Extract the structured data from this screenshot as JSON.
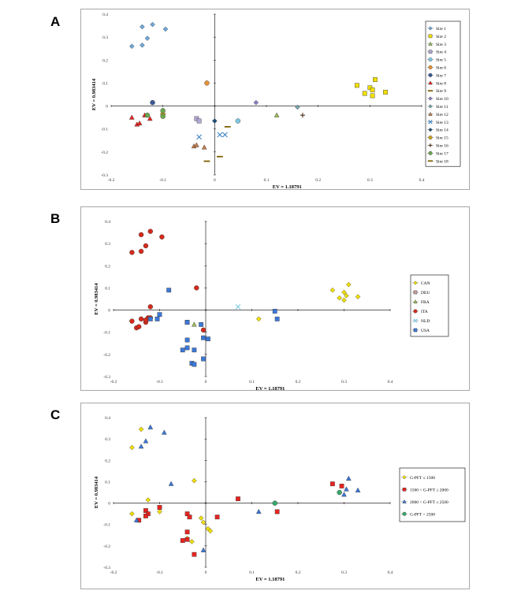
{
  "chart_data": [
    {
      "panel": "A",
      "type": "scatter",
      "xlabel": "EV = 1.18791",
      "ylabel": "EV = 0.983414",
      "xlim": [
        -0.2,
        0.4
      ],
      "ylim": [
        -0.3,
        0.4
      ],
      "xticks": [
        "-0.2",
        "-0.1",
        "0",
        "0.1",
        "0.2",
        "0.3",
        "0.4"
      ],
      "yticks": [
        "0.4",
        "0.3",
        "0.2",
        "0.1",
        "0",
        "-0.1",
        "-0.2",
        "-0.3"
      ],
      "legend_position": "right",
      "series": [
        {
          "name": "Sire 1",
          "marker": "diamond",
          "color": "#6fa8dc",
          "points": [
            [
              -0.16,
              0.26
            ],
            [
              -0.14,
              0.265
            ],
            [
              -0.13,
              0.295
            ],
            [
              -0.14,
              0.345
            ],
            [
              -0.12,
              0.355
            ],
            [
              -0.095,
              0.335
            ]
          ]
        },
        {
          "name": "Sire 2",
          "marker": "square",
          "color": "#f1e000",
          "points": [
            [
              0.275,
              0.09
            ],
            [
              0.29,
              0.055
            ],
            [
              0.3,
              0.08
            ],
            [
              0.31,
              0.115
            ],
            [
              0.305,
              0.07
            ],
            [
              0.305,
              0.045
            ],
            [
              0.33,
              0.06
            ]
          ]
        },
        {
          "name": "Sire 3",
          "marker": "triangle",
          "color": "#9bbb59",
          "points": [
            [
              0.12,
              -0.04
            ]
          ]
        },
        {
          "name": "Sire 4",
          "marker": "square",
          "color": "#b4a7d6",
          "points": [
            [
              -0.035,
              -0.055
            ],
            [
              -0.03,
              -0.065
            ]
          ]
        },
        {
          "name": "Sire 5",
          "marker": "circle",
          "color": "#7ec8e3",
          "points": [
            [
              0.045,
              -0.065
            ]
          ]
        },
        {
          "name": "Sire 6",
          "marker": "circle",
          "color": "#e69138",
          "points": [
            [
              -0.015,
              0.1
            ]
          ]
        },
        {
          "name": "Sire 7",
          "marker": "circle",
          "color": "#3d5a99",
          "points": [
            [
              -0.12,
              0.015
            ]
          ]
        },
        {
          "name": "Sire 8",
          "marker": "triangle",
          "color": "#e8231f",
          "points": [
            [
              -0.16,
              -0.05
            ],
            [
              -0.15,
              -0.08
            ],
            [
              -0.145,
              -0.075
            ],
            [
              -0.135,
              -0.04
            ],
            [
              -0.125,
              -0.055
            ]
          ]
        },
        {
          "name": "Sire 9",
          "marker": "dash",
          "color": "#7f6000",
          "points": [
            [
              0.01,
              -0.22
            ],
            [
              0.025,
              -0.09
            ]
          ]
        },
        {
          "name": "Sire 10",
          "marker": "diamond",
          "color": "#8e7cc3",
          "points": [
            [
              0.08,
              0.015
            ]
          ]
        },
        {
          "name": "Sire 11",
          "marker": "diamond",
          "color": "#76a5af",
          "points": [
            [
              0.16,
              -0.005
            ]
          ]
        },
        {
          "name": "Sire 12",
          "marker": "triangle",
          "color": "#c27c4e",
          "points": [
            [
              -0.04,
              -0.175
            ],
            [
              -0.035,
              -0.17
            ],
            [
              -0.02,
              -0.18
            ]
          ]
        },
        {
          "name": "Sire 13",
          "marker": "x",
          "color": "#3d85c6",
          "points": [
            [
              -0.03,
              -0.135
            ],
            [
              0.01,
              -0.125
            ],
            [
              0.02,
              -0.125
            ]
          ]
        },
        {
          "name": "Sire 14",
          "marker": "diamond",
          "color": "#1f4e79",
          "points": [
            [
              0.0,
              -0.065
            ]
          ]
        },
        {
          "name": "Sire 15",
          "marker": "circle",
          "color": "#c9a227",
          "points": [
            [
              -0.1,
              -0.035
            ]
          ]
        },
        {
          "name": "Sire 16",
          "marker": "plus",
          "color": "#5b3a29",
          "points": [
            [
              0.17,
              -0.04
            ]
          ]
        },
        {
          "name": "Sire 17",
          "marker": "circle",
          "color": "#6aa84f",
          "points": [
            [
              -0.13,
              -0.04
            ],
            [
              -0.1,
              -0.02
            ],
            [
              -0.1,
              -0.045
            ]
          ]
        },
        {
          "name": "Sire 18",
          "marker": "dash",
          "color": "#7f6000",
          "points": [
            [
              -0.015,
              -0.24
            ]
          ]
        }
      ]
    },
    {
      "panel": "B",
      "type": "scatter",
      "xlabel": "EV = 1.18791",
      "ylabel": "EV = 0.983414",
      "xlim": [
        -0.2,
        0.4
      ],
      "ylim": [
        -0.3,
        0.4
      ],
      "xticks": [
        "-0.2",
        "-0.1",
        "0",
        "0.1",
        "0.2",
        "0.3",
        "0.4"
      ],
      "yticks": [
        "0.4",
        "0.3",
        "0.2",
        "0.1",
        "0",
        "-0.1",
        "-0.2",
        "-0.3"
      ],
      "legend_position": "right",
      "series": [
        {
          "name": "CAN",
          "marker": "diamond",
          "color": "#f1e000",
          "points": [
            [
              0.275,
              0.09
            ],
            [
              0.29,
              0.055
            ],
            [
              0.3,
              0.08
            ],
            [
              0.31,
              0.115
            ],
            [
              0.305,
              0.065
            ],
            [
              0.3,
              0.045
            ],
            [
              0.33,
              0.06
            ],
            [
              0.115,
              -0.04
            ]
          ]
        },
        {
          "name": "DEU",
          "marker": "square",
          "color": "#c59a9a",
          "points": [
            [
              -0.04,
              -0.055
            ]
          ]
        },
        {
          "name": "FRA",
          "marker": "triangle",
          "color": "#9bbb59",
          "points": [
            [
              -0.025,
              -0.065
            ]
          ]
        },
        {
          "name": "ITA",
          "marker": "circle",
          "color": "#d42a1c",
          "points": [
            [
              -0.16,
              0.26
            ],
            [
              -0.14,
              0.265
            ],
            [
              -0.13,
              0.29
            ],
            [
              -0.14,
              0.34
            ],
            [
              -0.12,
              0.355
            ],
            [
              -0.095,
              0.33
            ],
            [
              -0.02,
              0.1
            ],
            [
              -0.12,
              0.015
            ],
            [
              -0.16,
              -0.05
            ],
            [
              -0.15,
              -0.08
            ],
            [
              -0.145,
              -0.075
            ],
            [
              -0.14,
              -0.04
            ],
            [
              -0.13,
              -0.055
            ],
            [
              -0.125,
              -0.035
            ],
            [
              -0.13,
              -0.045
            ],
            [
              -0.12,
              -0.035
            ],
            [
              -0.005,
              -0.09
            ]
          ]
        },
        {
          "name": "NLD",
          "marker": "x",
          "color": "#7ec8e3",
          "points": [
            [
              0.07,
              0.015
            ]
          ]
        },
        {
          "name": "USA",
          "marker": "square",
          "color": "#3c78d8",
          "points": [
            [
              -0.08,
              0.09
            ],
            [
              -0.1,
              -0.02
            ],
            [
              -0.105,
              -0.04
            ],
            [
              -0.12,
              -0.04
            ],
            [
              -0.04,
              -0.055
            ],
            [
              -0.01,
              -0.065
            ],
            [
              -0.005,
              -0.125
            ],
            [
              0.005,
              -0.13
            ],
            [
              -0.04,
              -0.135
            ],
            [
              -0.04,
              -0.17
            ],
            [
              -0.05,
              -0.18
            ],
            [
              -0.025,
              -0.18
            ],
            [
              -0.03,
              -0.24
            ],
            [
              -0.025,
              -0.245
            ],
            [
              -0.005,
              -0.22
            ],
            [
              0.15,
              -0.005
            ],
            [
              0.155,
              -0.04
            ]
          ]
        }
      ]
    },
    {
      "panel": "C",
      "type": "scatter",
      "xlabel": "EV = 1.18791",
      "ylabel": "EV = 0.983414",
      "xlim": [
        -0.2,
        0.4
      ],
      "ylim": [
        -0.3,
        0.4
      ],
      "xticks": [
        "-0.2",
        "-0.1",
        "0",
        "0.1",
        "0.2",
        "0.3",
        "0.4"
      ],
      "yticks": [
        "0.4",
        "0.3",
        "0.2",
        "0.1",
        "0",
        "-0.1",
        "-0.2",
        "-0.3"
      ],
      "legend_position": "right",
      "series": [
        {
          "name": "G-PFT ≤ 1500",
          "marker": "diamond",
          "color": "#f1e000",
          "points": [
            [
              -0.16,
              0.26
            ],
            [
              -0.14,
              0.345
            ],
            [
              -0.125,
              0.015
            ],
            [
              -0.025,
              0.105
            ],
            [
              -0.16,
              -0.05
            ],
            [
              -0.1,
              -0.04
            ],
            [
              -0.01,
              -0.07
            ],
            [
              -0.005,
              -0.09
            ],
            [
              0.005,
              -0.12
            ],
            [
              0.01,
              -0.13
            ],
            [
              -0.03,
              -0.18
            ],
            [
              -0.04,
              -0.165
            ]
          ]
        },
        {
          "name": "1500 < G-PFT ≤ 2000",
          "marker": "square",
          "color": "#e8231f",
          "points": [
            [
              0.275,
              0.09
            ],
            [
              0.295,
              0.08
            ],
            [
              0.07,
              0.02
            ],
            [
              -0.1,
              -0.02
            ],
            [
              -0.13,
              -0.035
            ],
            [
              -0.125,
              -0.05
            ],
            [
              -0.13,
              -0.06
            ],
            [
              -0.145,
              -0.08
            ],
            [
              -0.04,
              -0.05
            ],
            [
              -0.035,
              -0.065
            ],
            [
              0.025,
              -0.065
            ],
            [
              0.155,
              -0.04
            ],
            [
              -0.04,
              -0.135
            ],
            [
              -0.05,
              -0.175
            ],
            [
              -0.04,
              -0.17
            ],
            [
              -0.025,
              -0.24
            ]
          ]
        },
        {
          "name": "2000 < G-PFT ≤ 2500",
          "marker": "triangle",
          "color": "#3c78d8",
          "points": [
            [
              -0.14,
              0.265
            ],
            [
              -0.13,
              0.29
            ],
            [
              -0.12,
              0.355
            ],
            [
              -0.09,
              0.33
            ],
            [
              -0.075,
              0.09
            ],
            [
              0.31,
              0.115
            ],
            [
              0.305,
              0.065
            ],
            [
              0.3,
              0.04
            ],
            [
              0.33,
              0.06
            ],
            [
              0.115,
              -0.04
            ],
            [
              -0.15,
              -0.08
            ],
            [
              -0.005,
              -0.22
            ]
          ]
        },
        {
          "name": "G-PFT > 2500",
          "marker": "circle",
          "color": "#38a86b",
          "points": [
            [
              0.29,
              0.05
            ],
            [
              0.15,
              0.0
            ]
          ]
        }
      ]
    }
  ]
}
